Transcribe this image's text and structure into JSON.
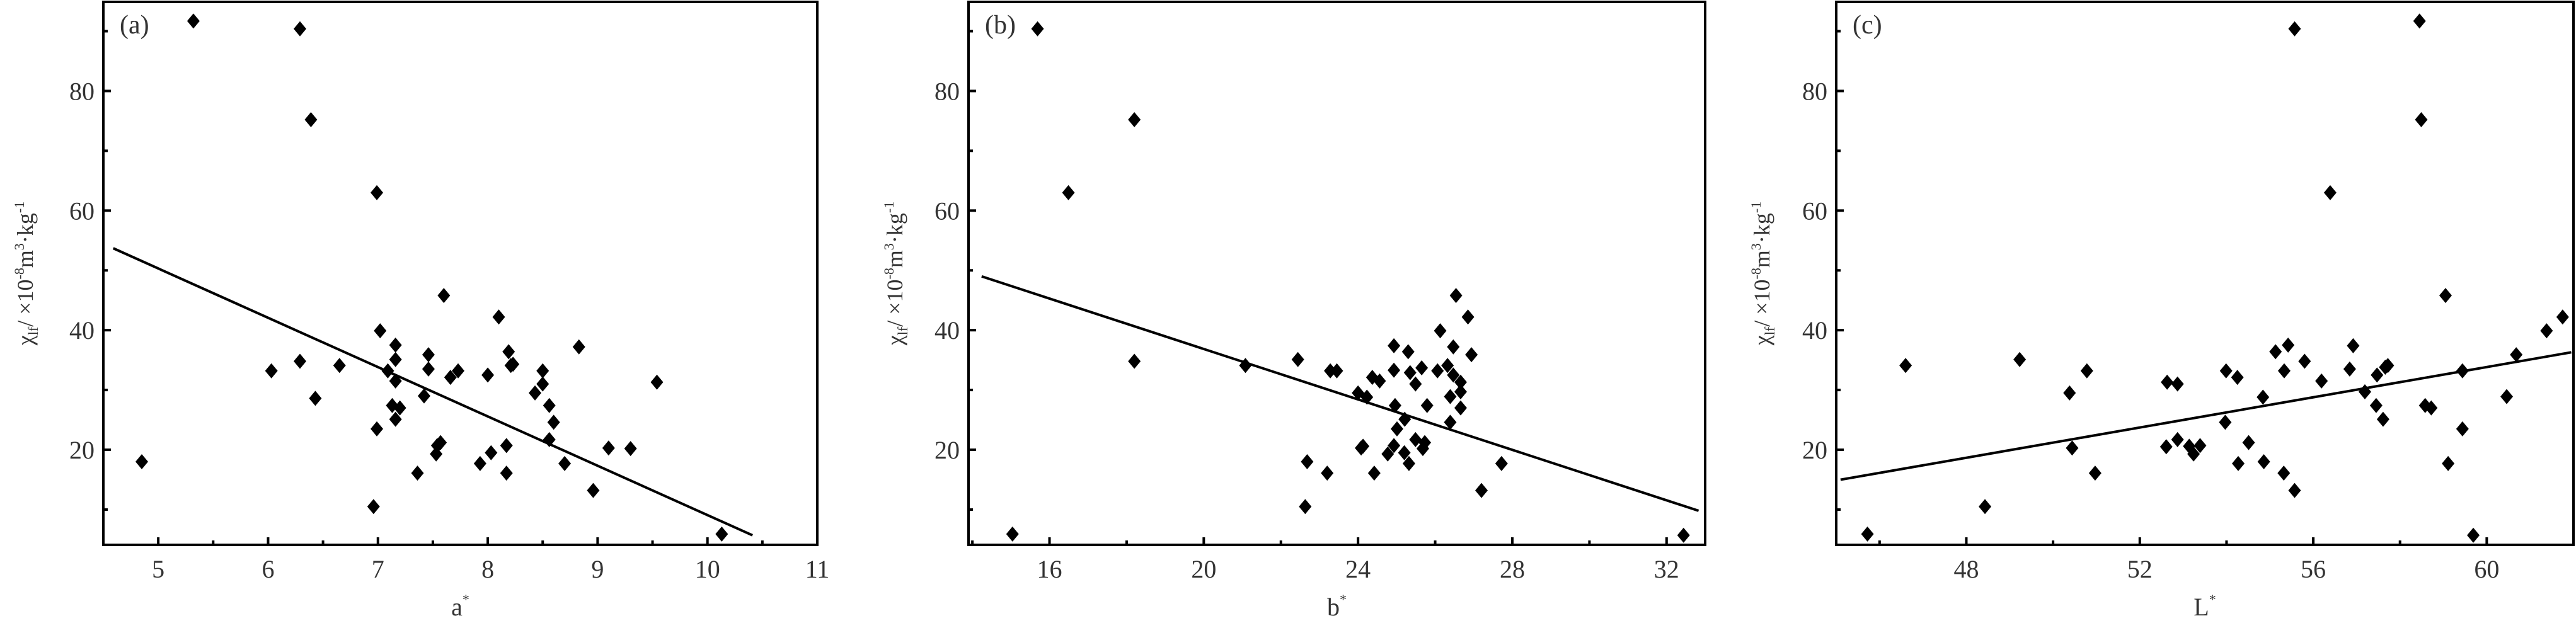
{
  "chart_data": [
    {
      "type": "scatter",
      "panel_label": "(a)",
      "xlabel": "a",
      "xlabel_sup": "*",
      "ylabel_parts": [
        [
          "χ",
          "n"
        ],
        [
          "lf",
          "sub"
        ],
        [
          "/ ×10",
          "n"
        ],
        [
          "-8",
          "sup"
        ],
        [
          "m",
          "n"
        ],
        [
          "3",
          "sup"
        ],
        [
          "·kg",
          "n"
        ],
        [
          "-1",
          "sup"
        ]
      ],
      "xlim": [
        4.5,
        11.0
      ],
      "ylim": [
        4.1,
        94.9
      ],
      "xticks": [
        5,
        6,
        7,
        8,
        9,
        10,
        11
      ],
      "xminor": [
        4.5,
        5.5,
        6.5,
        7.5,
        8.5,
        9.5,
        10.5
      ],
      "yticks": [
        20,
        40,
        60,
        80
      ],
      "yminor": [
        10,
        30,
        50,
        70,
        90
      ],
      "grid": false,
      "points": [
        [
          5.32,
          91.7
        ],
        [
          6.29,
          90.4
        ],
        [
          6.39,
          75.2
        ],
        [
          6.99,
          63.0
        ],
        [
          7.6,
          45.8
        ],
        [
          8.1,
          42.2
        ],
        [
          7.02,
          39.9
        ],
        [
          8.83,
          37.2
        ],
        [
          7.16,
          37.5
        ],
        [
          8.19,
          36.4
        ],
        [
          7.46,
          35.9
        ],
        [
          6.29,
          34.8
        ],
        [
          7.16,
          35.1
        ],
        [
          6.65,
          34.1
        ],
        [
          8.21,
          34.1
        ],
        [
          8.23,
          34.3
        ],
        [
          7.46,
          33.5
        ],
        [
          8.5,
          33.2
        ],
        [
          6.03,
          33.2
        ],
        [
          7.09,
          33.2
        ],
        [
          7.73,
          33.2
        ],
        [
          8.0,
          32.5
        ],
        [
          7.66,
          32.1
        ],
        [
          7.16,
          31.5
        ],
        [
          9.54,
          31.3
        ],
        [
          8.5,
          31.0
        ],
        [
          8.43,
          29.5
        ],
        [
          7.42,
          29.0
        ],
        [
          6.43,
          28.6
        ],
        [
          8.56,
          27.4
        ],
        [
          7.13,
          27.4
        ],
        [
          7.2,
          27.0
        ],
        [
          7.16,
          25.1
        ],
        [
          8.6,
          24.6
        ],
        [
          6.99,
          23.5
        ],
        [
          8.56,
          21.7
        ],
        [
          7.57,
          21.2
        ],
        [
          8.17,
          20.7
        ],
        [
          9.1,
          20.3
        ],
        [
          9.3,
          20.2
        ],
        [
          7.54,
          20.7
        ],
        [
          7.53,
          19.3
        ],
        [
          8.03,
          19.5
        ],
        [
          4.85,
          18.0
        ],
        [
          7.93,
          17.7
        ],
        [
          8.7,
          17.7
        ],
        [
          7.36,
          16.1
        ],
        [
          8.17,
          16.1
        ],
        [
          8.96,
          13.2
        ],
        [
          6.96,
          10.5
        ],
        [
          10.13,
          5.9
        ]
      ],
      "fit_line": [
        [
          4.59,
          53.7
        ],
        [
          10.41,
          5.7
        ]
      ]
    },
    {
      "type": "scatter",
      "panel_label": "(b)",
      "xlabel": "b",
      "xlabel_sup": "*",
      "ylabel_parts": [
        [
          "χ",
          "n"
        ],
        [
          "lf",
          "sub"
        ],
        [
          "/ ×10",
          "n"
        ],
        [
          "-8",
          "sup"
        ],
        [
          "m",
          "n"
        ],
        [
          "3",
          "sup"
        ],
        [
          "·kg",
          "n"
        ],
        [
          "-1",
          "sup"
        ]
      ],
      "xlim": [
        13.9,
        33.0
      ],
      "ylim": [
        4.1,
        94.9
      ],
      "xticks": [
        16,
        20,
        24,
        28,
        32
      ],
      "xminor": [
        14,
        18,
        22,
        26,
        30
      ],
      "yticks": [
        20,
        40,
        60,
        80
      ],
      "yminor": [
        10,
        30,
        50,
        70,
        90
      ],
      "grid": false,
      "points": [
        [
          15.69,
          90.4
        ],
        [
          18.2,
          75.2
        ],
        [
          16.49,
          63.0
        ],
        [
          26.54,
          45.8
        ],
        [
          26.85,
          42.2
        ],
        [
          26.13,
          39.9
        ],
        [
          24.93,
          37.4
        ],
        [
          26.47,
          37.2
        ],
        [
          25.3,
          36.4
        ],
        [
          26.94,
          35.9
        ],
        [
          22.44,
          35.1
        ],
        [
          18.2,
          34.8
        ],
        [
          21.08,
          34.1
        ],
        [
          26.32,
          34.1
        ],
        [
          25.65,
          33.7
        ],
        [
          24.93,
          33.3
        ],
        [
          23.28,
          33.2
        ],
        [
          23.45,
          33.2
        ],
        [
          25.35,
          32.9
        ],
        [
          26.06,
          33.2
        ],
        [
          26.47,
          32.5
        ],
        [
          24.37,
          32.1
        ],
        [
          24.56,
          31.5
        ],
        [
          26.66,
          31.3
        ],
        [
          25.49,
          31.0
        ],
        [
          26.66,
          29.7
        ],
        [
          24.0,
          29.5
        ],
        [
          24.23,
          28.8
        ],
        [
          26.39,
          28.9
        ],
        [
          24.96,
          27.4
        ],
        [
          25.79,
          27.4
        ],
        [
          26.66,
          27.0
        ],
        [
          25.21,
          25.1
        ],
        [
          26.39,
          24.6
        ],
        [
          25.01,
          23.5
        ],
        [
          25.49,
          21.7
        ],
        [
          25.73,
          21.2
        ],
        [
          24.93,
          20.7
        ],
        [
          24.08,
          20.3
        ],
        [
          24.13,
          20.6
        ],
        [
          25.68,
          20.2
        ],
        [
          24.77,
          19.3
        ],
        [
          25.2,
          19.5
        ],
        [
          22.68,
          18.0
        ],
        [
          27.72,
          17.7
        ],
        [
          25.32,
          17.7
        ],
        [
          23.2,
          16.1
        ],
        [
          24.42,
          16.1
        ],
        [
          27.2,
          13.2
        ],
        [
          22.63,
          10.5
        ],
        [
          15.04,
          5.9
        ],
        [
          32.44,
          5.7
        ]
      ],
      "fit_line": [
        [
          14.24,
          49.0
        ],
        [
          32.83,
          9.8
        ]
      ]
    },
    {
      "type": "scatter",
      "panel_label": "(c)",
      "xlabel": "L",
      "xlabel_sup": "*",
      "ylabel_parts": [
        [
          "χ",
          "n"
        ],
        [
          "lf",
          "sub"
        ],
        [
          "/ ×10",
          "n"
        ],
        [
          "-8",
          "sup"
        ],
        [
          "m",
          "n"
        ],
        [
          "3",
          "sup"
        ],
        [
          "·kg",
          "n"
        ],
        [
          "-1",
          "sup"
        ]
      ],
      "xlim": [
        45.0,
        62.0
      ],
      "ylim": [
        4.1,
        94.9
      ],
      "xticks": [
        48,
        52,
        56,
        60
      ],
      "xminor": [
        46,
        50,
        54,
        58,
        62
      ],
      "yticks": [
        20,
        40,
        60,
        80
      ],
      "yminor": [
        10,
        30,
        50,
        70,
        90
      ],
      "grid": false,
      "points": [
        [
          58.45,
          91.7
        ],
        [
          55.57,
          90.4
        ],
        [
          58.49,
          75.2
        ],
        [
          56.39,
          63.0
        ],
        [
          59.05,
          45.8
        ],
        [
          61.75,
          42.2
        ],
        [
          61.38,
          39.9
        ],
        [
          56.92,
          37.4
        ],
        [
          55.42,
          37.5
        ],
        [
          55.13,
          36.4
        ],
        [
          60.68,
          35.9
        ],
        [
          49.23,
          35.1
        ],
        [
          55.8,
          34.8
        ],
        [
          46.6,
          34.1
        ],
        [
          57.72,
          34.1
        ],
        [
          57.66,
          33.8
        ],
        [
          56.84,
          33.5
        ],
        [
          53.99,
          33.2
        ],
        [
          55.33,
          33.2
        ],
        [
          50.78,
          33.2
        ],
        [
          59.44,
          33.2
        ],
        [
          57.47,
          32.5
        ],
        [
          54.25,
          32.1
        ],
        [
          56.19,
          31.5
        ],
        [
          52.63,
          31.3
        ],
        [
          52.87,
          31.0
        ],
        [
          57.19,
          29.7
        ],
        [
          50.38,
          29.5
        ],
        [
          54.84,
          28.8
        ],
        [
          60.46,
          28.9
        ],
        [
          58.58,
          27.4
        ],
        [
          57.45,
          27.4
        ],
        [
          58.72,
          27.0
        ],
        [
          57.61,
          25.1
        ],
        [
          53.97,
          24.6
        ],
        [
          59.44,
          23.5
        ],
        [
          52.87,
          21.7
        ],
        [
          54.51,
          21.2
        ],
        [
          53.39,
          20.7
        ],
        [
          50.44,
          20.3
        ],
        [
          52.61,
          20.5
        ],
        [
          53.14,
          20.6
        ],
        [
          53.24,
          19.3
        ],
        [
          54.27,
          17.7
        ],
        [
          54.86,
          18.0
        ],
        [
          59.11,
          17.7
        ],
        [
          50.97,
          16.1
        ],
        [
          55.32,
          16.1
        ],
        [
          55.57,
          13.2
        ],
        [
          48.43,
          10.5
        ],
        [
          45.72,
          5.9
        ],
        [
          59.69,
          5.7
        ]
      ],
      "fit_line": [
        [
          45.1,
          15.0
        ],
        [
          61.95,
          36.3
        ]
      ]
    }
  ]
}
